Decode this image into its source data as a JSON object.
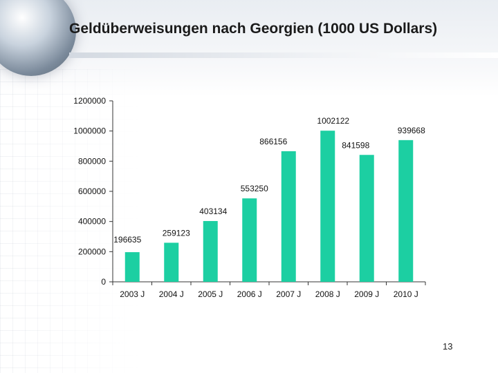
{
  "slide": {
    "title": "Geldüberweisungen nach Georgien (1000 US Dollars)",
    "page_number": "13"
  },
  "colors": {
    "bar": "#1ccfa2",
    "axis": "#333333",
    "text": "#111111"
  },
  "chart_data": {
    "type": "bar",
    "categories": [
      "2003 J",
      "2004 J",
      "2005 J",
      "2006 J",
      "2007 J",
      "2008 J",
      "2009 J",
      "2010 J"
    ],
    "values": [
      196635,
      259123,
      403134,
      553250,
      866156,
      1002122,
      841598,
      939668
    ],
    "data_labels": [
      "196635",
      "259123",
      "403134",
      "553250",
      "866156",
      "1002122",
      "841598",
      "939668"
    ],
    "y_ticks": [
      0,
      200000,
      400000,
      600000,
      800000,
      1000000,
      1200000
    ],
    "y_tick_labels": [
      "0",
      "200000",
      "400000",
      "600000",
      "800000",
      "1000000",
      "1200000"
    ],
    "ylim": [
      0,
      1200000
    ],
    "grid": false,
    "legend": "none"
  }
}
